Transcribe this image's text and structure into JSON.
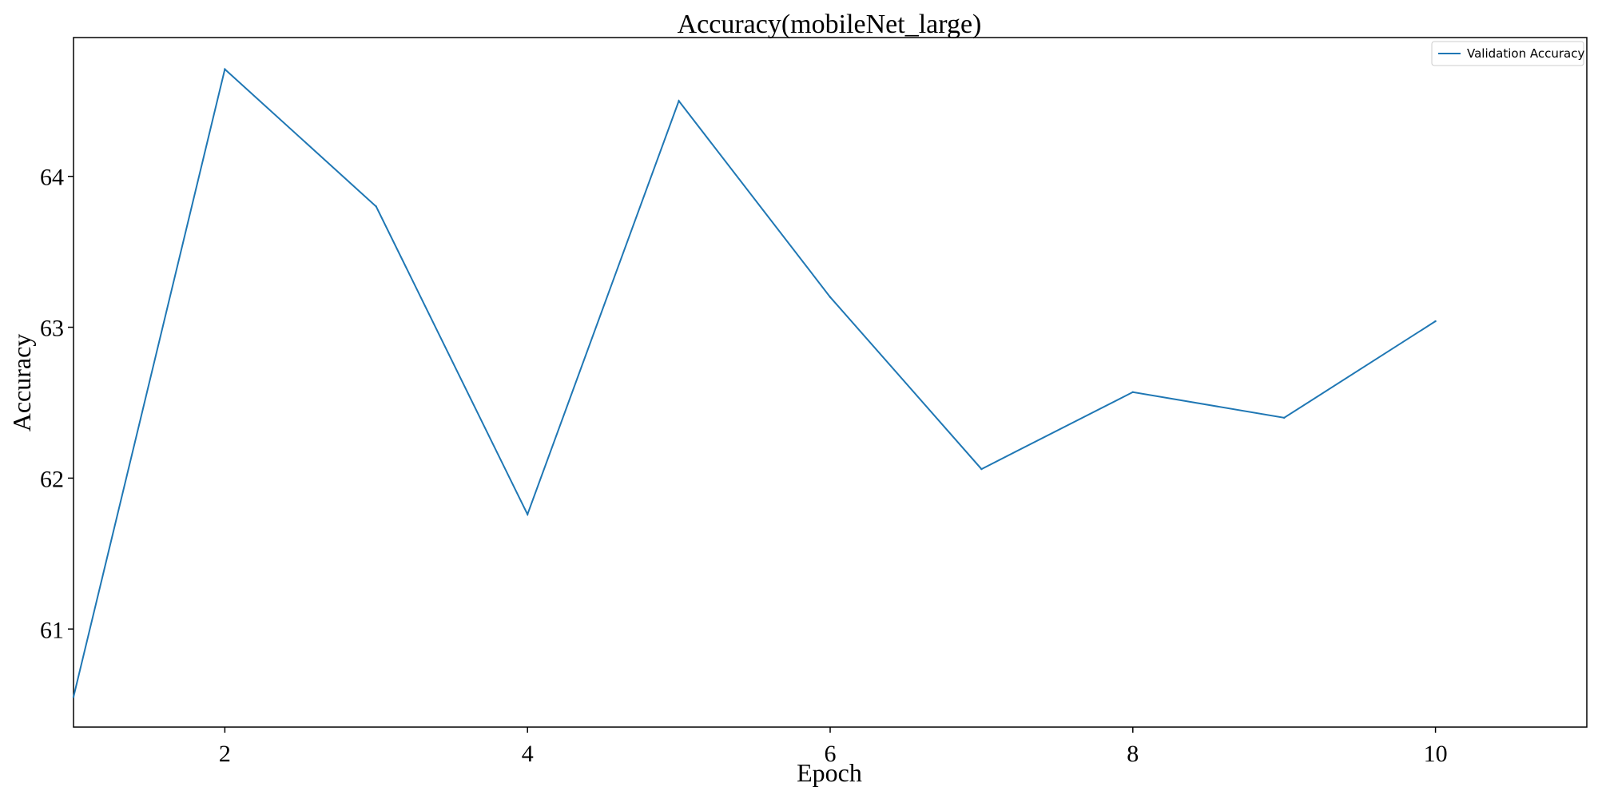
{
  "chart_data": {
    "type": "line",
    "title": "Accuracy(mobileNet_large)",
    "xlabel": "Epoch",
    "ylabel": "Accuracy",
    "x": [
      1,
      2,
      3,
      4,
      5,
      6,
      7,
      8,
      9,
      10
    ],
    "series": [
      {
        "name": "Validation Accuracy",
        "color": "#1f77b4",
        "values": [
          60.55,
          64.71,
          63.8,
          61.76,
          64.5,
          63.2,
          62.06,
          62.57,
          62.4,
          63.04
        ]
      }
    ],
    "xlim": [
      1,
      11
    ],
    "ylim": [
      60.35,
      64.92
    ],
    "xticks": [
      2,
      4,
      6,
      8,
      10
    ],
    "yticks": [
      61,
      62,
      63,
      64
    ],
    "grid": false,
    "legend_position": "top-right"
  }
}
